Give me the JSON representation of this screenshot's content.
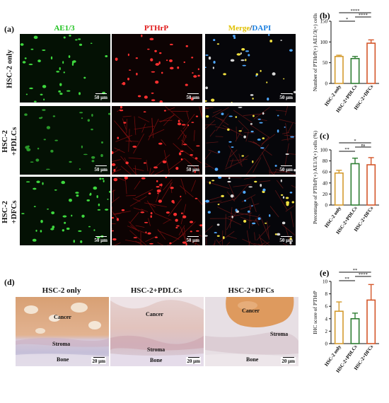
{
  "panel_a": {
    "label": "(a)",
    "columns": [
      {
        "title": "AE1/3",
        "color": "#1fc21f"
      },
      {
        "title": "PTHrP",
        "color": "#e01818"
      },
      {
        "title_parts": [
          "Merge",
          "/",
          "DAPI"
        ],
        "colors": [
          "#e0c000",
          "#1a1a1a",
          "#1a7fe0"
        ]
      }
    ],
    "rows": [
      "HSC-2 only",
      "HSC-2\n+PDLCs",
      "HSC-2\n+DFCs"
    ],
    "scale_bar": "50 µm"
  },
  "panel_d": {
    "label": "(d)",
    "titles": [
      "HSC-2 only",
      "HSC-2+PDLCs",
      "HSC-2+DFCs"
    ],
    "tissue_labels": {
      "cancer": "Cancer",
      "stroma": "Stroma",
      "bone": "Bone"
    },
    "scale_bar": "20 µm"
  },
  "chart_data": [
    {
      "label": "(b)",
      "type": "bar",
      "categories": [
        "HSC-2 only",
        "HSC-2+PDLCs",
        "HSC-2+DFCs"
      ],
      "values": [
        65,
        60,
        97
      ],
      "errors": [
        3,
        5,
        8
      ],
      "colors": [
        "#d39a2e",
        "#2e7d32",
        "#d4572a"
      ],
      "ylabel": "Number of PTHrP(+) AE1/3(+) cells",
      "ylim": [
        0,
        150
      ],
      "yticks": [
        0,
        50,
        100,
        150
      ],
      "significance": [
        {
          "from": 0,
          "to": 1,
          "text": "*"
        },
        {
          "from": 1,
          "to": 2,
          "text": "****"
        },
        {
          "from": 0,
          "to": 2,
          "text": "****"
        }
      ]
    },
    {
      "label": "(c)",
      "type": "bar",
      "categories": [
        "HSC-2 only",
        "HSC-2+PDLCs",
        "HSC-2+DFCs"
      ],
      "values": [
        58,
        75,
        73
      ],
      "errors": [
        5,
        10,
        13
      ],
      "colors": [
        "#d39a2e",
        "#2e7d32",
        "#d4572a"
      ],
      "ylabel": "Percentage of PTHrP(+) AE1/3(+) cells (%)",
      "ylim": [
        0,
        100
      ],
      "yticks": [
        0,
        20,
        40,
        60,
        80,
        100
      ],
      "significance": [
        {
          "from": 0,
          "to": 1,
          "text": "**"
        },
        {
          "from": 1,
          "to": 2,
          "text": "ns"
        },
        {
          "from": 0,
          "to": 2,
          "text": "*"
        }
      ]
    },
    {
      "label": "(e)",
      "type": "bar",
      "categories": [
        "HSC-2 only",
        "HSC-2+PDLCs",
        "HSC-2+DFCs"
      ],
      "values": [
        5.2,
        4.0,
        7.0
      ],
      "errors": [
        1.5,
        0.9,
        2.5
      ],
      "colors": [
        "#d39a2e",
        "#2e7d32",
        "#d4572a"
      ],
      "ylabel": "IHC score of PTHrP",
      "ylim": [
        0,
        10
      ],
      "yticks": [
        0,
        2,
        4,
        6,
        8,
        10
      ],
      "significance": [
        {
          "from": 0,
          "to": 1,
          "text": "**"
        },
        {
          "from": 1,
          "to": 2,
          "text": "****"
        },
        {
          "from": 0,
          "to": 2,
          "text": "**"
        }
      ]
    }
  ]
}
